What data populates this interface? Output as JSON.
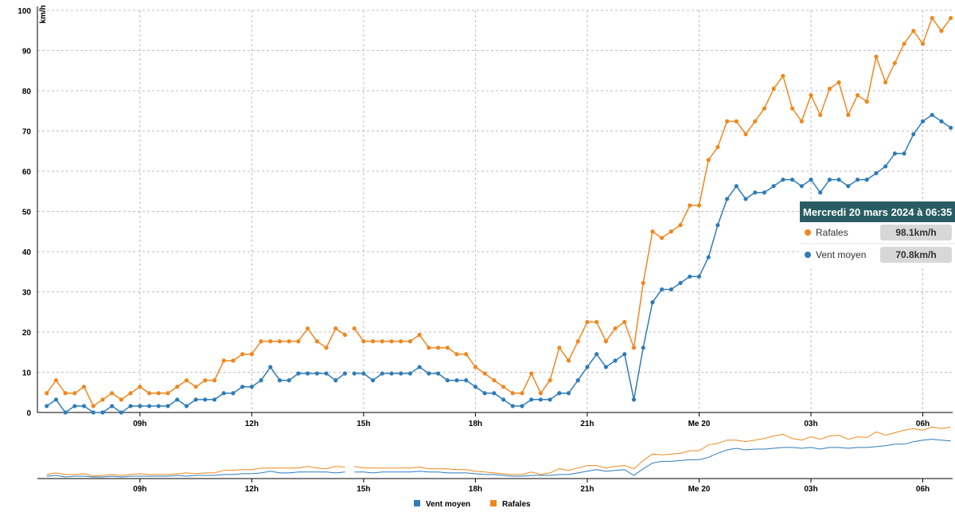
{
  "colors": {
    "vent_moyen": "#2e7cb8",
    "rafales": "#f0871e",
    "tooltip_header": "#2a5d63",
    "tooltip_pill": "#d8d8d8"
  },
  "tooltip": {
    "title": "Mercredi 20 mars 2024 à 06:35",
    "rows": [
      {
        "series": "Rafales",
        "value": "98.1km/h",
        "color": "#f0871e"
      },
      {
        "series": "Vent moyen",
        "value": "70.8km/h",
        "color": "#2e7cb8"
      }
    ]
  },
  "legend": [
    {
      "label": "Vent moyen",
      "color": "#2e7cb8"
    },
    {
      "label": "Rafales",
      "color": "#f0871e"
    }
  ],
  "chart_data": {
    "type": "line",
    "ylabel": "km/h",
    "xlabel": "",
    "ylim": [
      0,
      100
    ],
    "y_ticks": [
      "0",
      "10",
      "20",
      "30",
      "40",
      "50",
      "60",
      "70",
      "80",
      "90",
      "100"
    ],
    "x_unit": "hours since 06:00 on Tuesday 19 March 2024",
    "x_ticks": [
      {
        "x": 3,
        "label": "09h"
      },
      {
        "x": 6,
        "label": "12h"
      },
      {
        "x": 9,
        "label": "15h"
      },
      {
        "x": 12,
        "label": "18h"
      },
      {
        "x": 15,
        "label": "21h"
      },
      {
        "x": 18,
        "label": "Me 20"
      },
      {
        "x": 21,
        "label": "03h"
      },
      {
        "x": 24,
        "label": "06h"
      }
    ],
    "xlim": [
      0.25,
      24.8
    ],
    "grid": true,
    "gaps": [
      [
        8.5,
        8.75
      ]
    ],
    "series": [
      {
        "name": "Rafales",
        "color": "#f0871e",
        "segments": [
          [
            [
              0.5,
              4.8
            ],
            [
              0.75,
              8
            ],
            [
              1,
              4.8
            ],
            [
              1.25,
              4.8
            ],
            [
              1.5,
              6.4
            ],
            [
              1.75,
              1.6
            ],
            [
              2,
              3.2
            ],
            [
              2.25,
              4.8
            ],
            [
              2.5,
              3.2
            ],
            [
              2.75,
              4.8
            ],
            [
              3,
              6.4
            ],
            [
              3.25,
              4.8
            ],
            [
              3.5,
              4.8
            ],
            [
              3.75,
              4.8
            ],
            [
              4,
              6.4
            ],
            [
              4.25,
              8
            ],
            [
              4.5,
              6.4
            ],
            [
              4.75,
              8
            ],
            [
              5,
              8
            ],
            [
              5.25,
              12.9
            ],
            [
              5.5,
              12.9
            ],
            [
              5.75,
              14.5
            ],
            [
              6,
              14.5
            ],
            [
              6.25,
              17.7
            ],
            [
              6.5,
              17.7
            ],
            [
              6.75,
              17.7
            ],
            [
              7,
              17.7
            ],
            [
              7.25,
              17.7
            ],
            [
              7.5,
              20.9
            ],
            [
              7.75,
              17.7
            ],
            [
              8,
              16.1
            ],
            [
              8.25,
              20.9
            ],
            [
              8.5,
              19.3
            ]
          ],
          [
            [
              8.75,
              20.9
            ],
            [
              9,
              17.7
            ],
            [
              9.25,
              17.7
            ],
            [
              9.5,
              17.7
            ],
            [
              9.75,
              17.7
            ],
            [
              10,
              17.7
            ],
            [
              10.25,
              17.7
            ],
            [
              10.5,
              19.3
            ],
            [
              10.75,
              16.1
            ],
            [
              11,
              16.1
            ],
            [
              11.25,
              16.1
            ],
            [
              11.5,
              14.5
            ],
            [
              11.75,
              14.5
            ],
            [
              12,
              11.3
            ],
            [
              12.25,
              9.7
            ],
            [
              12.5,
              8
            ],
            [
              12.75,
              6.4
            ],
            [
              13,
              4.8
            ],
            [
              13.25,
              4.8
            ],
            [
              13.5,
              9.7
            ],
            [
              13.75,
              4.8
            ],
            [
              14,
              8
            ],
            [
              14.25,
              16.1
            ],
            [
              14.5,
              12.9
            ],
            [
              14.75,
              17.7
            ],
            [
              15,
              22.5
            ],
            [
              15.25,
              22.5
            ],
            [
              15.5,
              17.7
            ],
            [
              15.75,
              20.9
            ],
            [
              16,
              22.5
            ],
            [
              16.25,
              16.1
            ],
            [
              16.5,
              32.2
            ],
            [
              16.75,
              45
            ],
            [
              17,
              43.4
            ],
            [
              17.25,
              45
            ],
            [
              17.5,
              46.6
            ],
            [
              17.75,
              51.5
            ],
            [
              18,
              51.5
            ],
            [
              18.25,
              62.8
            ],
            [
              18.5,
              66
            ],
            [
              18.75,
              72.4
            ],
            [
              19,
              72.4
            ],
            [
              19.25,
              69.2
            ],
            [
              19.5,
              72.4
            ],
            [
              19.75,
              75.6
            ],
            [
              20,
              80.5
            ],
            [
              20.25,
              83.7
            ],
            [
              20.5,
              75.6
            ],
            [
              20.75,
              72.4
            ],
            [
              21,
              78.9
            ],
            [
              21.25,
              74
            ],
            [
              21.5,
              80.5
            ],
            [
              21.75,
              82.1
            ],
            [
              22,
              74
            ],
            [
              22.25,
              78.9
            ],
            [
              22.5,
              77.3
            ],
            [
              22.75,
              88.5
            ],
            [
              23,
              82.1
            ],
            [
              23.25,
              86.9
            ],
            [
              23.5,
              91.7
            ],
            [
              23.75,
              94.9
            ],
            [
              24,
              91.7
            ],
            [
              24.25,
              98.1
            ],
            [
              24.5,
              94.9
            ],
            [
              24.75,
              98.1
            ]
          ]
        ]
      },
      {
        "name": "Vent moyen",
        "color": "#2e7cb8",
        "segments": [
          [
            [
              0.5,
              1.6
            ],
            [
              0.75,
              3.2
            ],
            [
              1,
              0
            ],
            [
              1.25,
              1.6
            ],
            [
              1.5,
              1.6
            ],
            [
              1.75,
              0
            ],
            [
              2,
              0
            ],
            [
              2.25,
              1.6
            ],
            [
              2.5,
              0
            ],
            [
              2.75,
              1.6
            ],
            [
              3,
              1.6
            ],
            [
              3.25,
              1.6
            ],
            [
              3.5,
              1.6
            ],
            [
              3.75,
              1.6
            ],
            [
              4,
              3.2
            ],
            [
              4.25,
              1.6
            ],
            [
              4.5,
              3.2
            ],
            [
              4.75,
              3.2
            ],
            [
              5,
              3.2
            ],
            [
              5.25,
              4.8
            ],
            [
              5.5,
              4.8
            ],
            [
              5.75,
              6.4
            ],
            [
              6,
              6.4
            ],
            [
              6.25,
              8
            ],
            [
              6.5,
              11.3
            ],
            [
              6.75,
              8
            ],
            [
              7,
              8
            ],
            [
              7.25,
              9.7
            ],
            [
              7.5,
              9.7
            ],
            [
              7.75,
              9.7
            ],
            [
              8,
              9.7
            ],
            [
              8.25,
              8
            ],
            [
              8.5,
              9.7
            ]
          ],
          [
            [
              8.75,
              9.7
            ],
            [
              9,
              9.7
            ],
            [
              9.25,
              8
            ],
            [
              9.5,
              9.7
            ],
            [
              9.75,
              9.7
            ],
            [
              10,
              9.7
            ],
            [
              10.25,
              9.7
            ],
            [
              10.5,
              11.3
            ],
            [
              10.75,
              9.7
            ],
            [
              11,
              9.7
            ],
            [
              11.25,
              8
            ],
            [
              11.5,
              8
            ],
            [
              11.75,
              8
            ],
            [
              12,
              6.4
            ],
            [
              12.25,
              4.8
            ],
            [
              12.5,
              4.8
            ],
            [
              12.75,
              3.2
            ],
            [
              13,
              1.6
            ],
            [
              13.25,
              1.6
            ],
            [
              13.5,
              3.2
            ],
            [
              13.75,
              3.2
            ],
            [
              14,
              3.2
            ],
            [
              14.25,
              4.8
            ],
            [
              14.5,
              4.8
            ],
            [
              14.75,
              8
            ],
            [
              15,
              11.3
            ],
            [
              15.25,
              14.5
            ],
            [
              15.5,
              11.3
            ],
            [
              15.75,
              12.9
            ],
            [
              16,
              14.5
            ],
            [
              16.25,
              3.2
            ],
            [
              16.5,
              16.1
            ],
            [
              16.75,
              27.4
            ],
            [
              17,
              30.6
            ],
            [
              17.25,
              30.6
            ],
            [
              17.5,
              32.2
            ],
            [
              17.75,
              33.8
            ],
            [
              18,
              33.8
            ],
            [
              18.25,
              38.6
            ],
            [
              18.5,
              46.6
            ],
            [
              18.75,
              53.1
            ],
            [
              19,
              56.3
            ],
            [
              19.25,
              53.1
            ],
            [
              19.5,
              54.7
            ],
            [
              19.75,
              54.7
            ],
            [
              20,
              56.3
            ],
            [
              20.25,
              57.9
            ],
            [
              20.5,
              57.9
            ],
            [
              20.75,
              56.3
            ],
            [
              21,
              57.9
            ],
            [
              21.25,
              54.7
            ],
            [
              21.5,
              57.9
            ],
            [
              21.75,
              57.9
            ],
            [
              22,
              56.3
            ],
            [
              22.25,
              57.9
            ],
            [
              22.5,
              57.9
            ],
            [
              22.75,
              59.5
            ],
            [
              23,
              61.2
            ],
            [
              23.25,
              64.4
            ],
            [
              23.5,
              64.4
            ],
            [
              23.75,
              69.2
            ],
            [
              24,
              72.4
            ],
            [
              24.25,
              74
            ],
            [
              24.5,
              72.4
            ],
            [
              24.75,
              70.8
            ]
          ]
        ]
      }
    ]
  }
}
